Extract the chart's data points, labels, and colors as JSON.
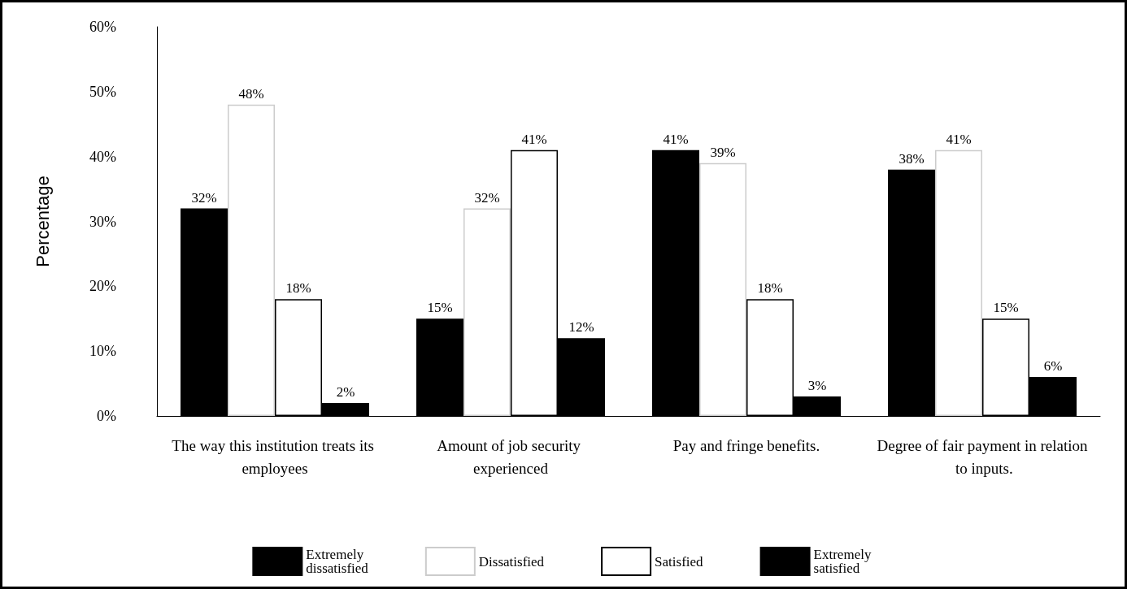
{
  "chart_data": {
    "type": "bar",
    "ylabel": "Percentage",
    "categories": [
      "The way this institution treats its employees",
      "Amount of job security experienced",
      "Pay and fringe benefits.",
      "Degree of fair payment in relation to inputs."
    ],
    "series": [
      {
        "name": "Extremely dissatisfied",
        "color": "#000000",
        "values": [
          32,
          15,
          41,
          38
        ],
        "value_labels": [
          "32%",
          "15%",
          "41%",
          "38%"
        ]
      },
      {
        "name": "Dissatisfied",
        "color": "#ffffff",
        "values": [
          48,
          32,
          39,
          41
        ],
        "value_labels": [
          "48%",
          "32%",
          "39%",
          "41%"
        ]
      },
      {
        "name": "Satisfied",
        "color": "#ffffff",
        "values": [
          18,
          41,
          18,
          15
        ],
        "value_labels": [
          "18%",
          "41%",
          "18%",
          "15%"
        ]
      },
      {
        "name": "Extremely satisfied",
        "color": "#000000",
        "values": [
          2,
          12,
          3,
          6
        ],
        "value_labels": [
          "2%",
          "12%",
          "3%",
          "6%"
        ]
      }
    ],
    "ylim": [
      0,
      60
    ],
    "yticks": [
      {
        "value": 0,
        "label": "0%"
      },
      {
        "value": 10,
        "label": "10%"
      },
      {
        "value": 20,
        "label": "20%"
      },
      {
        "value": 30,
        "label": "30%"
      },
      {
        "value": 40,
        "label": "40%"
      },
      {
        "value": 50,
        "label": "50%"
      },
      {
        "value": 60,
        "label": "60%"
      }
    ],
    "grid": false,
    "legend": "bottom"
  }
}
